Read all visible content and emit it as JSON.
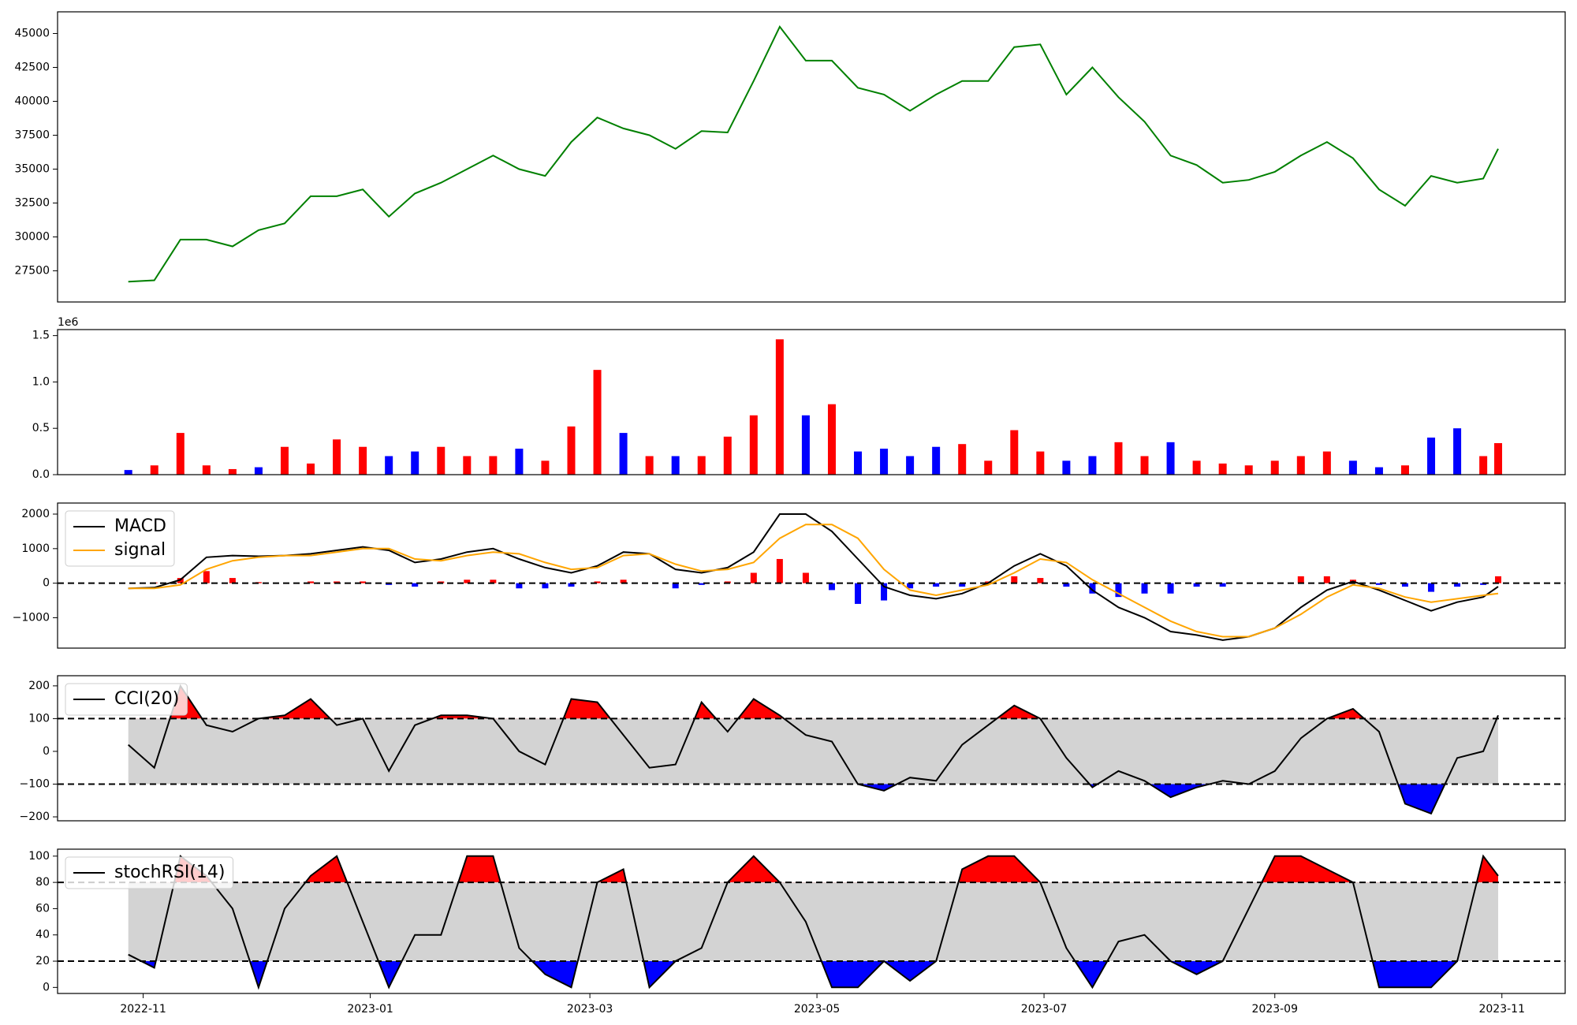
{
  "chart_data": [
    {
      "type": "line",
      "x": [
        "2022-10-28",
        "2022-11-04",
        "2022-11-11",
        "2022-11-18",
        "2022-11-25",
        "2022-12-02",
        "2022-12-09",
        "2022-12-16",
        "2022-12-23",
        "2022-12-30",
        "2023-01-06",
        "2023-01-13",
        "2023-01-20",
        "2023-01-27",
        "2023-02-03",
        "2023-02-10",
        "2023-02-17",
        "2023-02-24",
        "2023-03-03",
        "2023-03-10",
        "2023-03-17",
        "2023-03-24",
        "2023-03-31",
        "2023-04-07",
        "2023-04-14",
        "2023-04-21",
        "2023-04-28",
        "2023-05-05",
        "2023-05-12",
        "2023-05-19",
        "2023-05-26",
        "2023-06-02",
        "2023-06-09",
        "2023-06-16",
        "2023-06-23",
        "2023-06-30",
        "2023-07-07",
        "2023-07-14",
        "2023-07-21",
        "2023-07-28",
        "2023-08-04",
        "2023-08-11",
        "2023-08-18",
        "2023-08-25",
        "2023-09-01",
        "2023-09-08",
        "2023-09-15",
        "2023-09-22",
        "2023-09-29",
        "2023-10-06",
        "2023-10-13",
        "2023-10-20",
        "2023-10-27",
        "2023-10-31"
      ],
      "xlim": [
        "2022-10-09",
        "2023-11-18"
      ],
      "xticks": [
        "2022-11",
        "2023-01",
        "2023-03",
        "2023-05",
        "2023-07",
        "2023-09",
        "2023-11"
      ],
      "series": [
        {
          "color": "green",
          "values": [
            26700,
            26800,
            29800,
            29800,
            29300,
            30500,
            31000,
            33000,
            33000,
            33500,
            31500,
            33200,
            34000,
            35000,
            36000,
            35000,
            34500,
            37000,
            38800,
            38000,
            37500,
            36500,
            37800,
            37700,
            41500,
            45500,
            43000,
            43000,
            41000,
            40500,
            39300,
            40500,
            41500,
            41500,
            44000,
            44200,
            40500,
            42500,
            40300,
            38500,
            36000,
            35300,
            34000,
            34200,
            34800,
            36000,
            37000,
            35800,
            33500,
            32300,
            34500,
            34000,
            34300,
            36500
          ]
        }
      ],
      "ylim": [
        25200,
        46600
      ],
      "yticks": [
        27500,
        30000,
        32500,
        35000,
        37500,
        40000,
        42500,
        45000
      ]
    },
    {
      "type": "bar",
      "values": [
        50000,
        100000,
        450000,
        100000,
        60000,
        80000,
        300000,
        120000,
        380000,
        300000,
        200000,
        250000,
        300000,
        200000,
        200000,
        280000,
        150000,
        520000,
        1130000,
        450000,
        200000,
        200000,
        200000,
        410000,
        640000,
        1460000,
        640000,
        760000,
        250000,
        280000,
        200000,
        300000,
        330000,
        150000,
        480000,
        250000,
        150000,
        200000,
        350000,
        200000,
        350000,
        150000,
        120000,
        100000,
        150000,
        200000,
        250000,
        150000,
        80000,
        100000,
        400000,
        500000,
        200000,
        340000
      ],
      "colors": [
        "blue",
        "red",
        "red",
        "red",
        "red",
        "blue",
        "red",
        "red",
        "red",
        "red",
        "blue",
        "blue",
        "red",
        "red",
        "red",
        "blue",
        "red",
        "red",
        "red",
        "blue",
        "red",
        "blue",
        "red",
        "red",
        "red",
        "red",
        "blue",
        "red",
        "blue",
        "blue",
        "blue",
        "blue",
        "red",
        "red",
        "red",
        "red",
        "blue",
        "blue",
        "red",
        "red",
        "blue",
        "red",
        "red",
        "red",
        "red",
        "red",
        "red",
        "blue",
        "blue",
        "red",
        "blue",
        "blue",
        "red",
        "red"
      ],
      "ylim": [
        0,
        1565000
      ],
      "yticks": [
        {
          "value": 0,
          "label": "0.0"
        },
        {
          "value": 500000,
          "label": "0.5"
        },
        {
          "value": 1000000,
          "label": "1.0"
        },
        {
          "value": 1500000,
          "label": "1.5"
        }
      ],
      "y_offset_label": "1e6"
    },
    {
      "type": "line",
      "legend": "upper left",
      "series": [
        {
          "name": "MACD",
          "color": "black",
          "values": [
            -150,
            -130,
            100,
            750,
            800,
            780,
            800,
            850,
            950,
            1050,
            950,
            600,
            700,
            900,
            1000,
            700,
            450,
            300,
            500,
            900,
            850,
            400,
            300,
            450,
            900,
            2000,
            2000,
            1500,
            700,
            -100,
            -350,
            -450,
            -300,
            0,
            500,
            850,
            500,
            -200,
            -700,
            -1000,
            -1400,
            -1500,
            -1650,
            -1550,
            -1300,
            -700,
            -200,
            50,
            -200,
            -500,
            -800,
            -550,
            -400,
            -100
          ]
        },
        {
          "name": "signal",
          "color": "orange",
          "values": [
            -150,
            -150,
            -50,
            400,
            650,
            750,
            800,
            800,
            900,
            1000,
            1000,
            700,
            650,
            800,
            900,
            850,
            600,
            400,
            450,
            800,
            850,
            550,
            350,
            400,
            600,
            1300,
            1700,
            1700,
            1300,
            400,
            -200,
            -350,
            -200,
            -50,
            300,
            700,
            600,
            100,
            -300,
            -700,
            -1100,
            -1400,
            -1550,
            -1550,
            -1300,
            -900,
            -400,
            -50,
            -150,
            -400,
            -550,
            -450,
            -350,
            -300
          ]
        }
      ],
      "histogram": {
        "up_color": "red",
        "down_color": "blue",
        "values": [
          0,
          20,
          150,
          350,
          150,
          30,
          0,
          50,
          50,
          50,
          -50,
          -100,
          50,
          100,
          100,
          -150,
          -150,
          -100,
          50,
          100,
          0,
          -150,
          -50,
          50,
          300,
          700,
          300,
          -200,
          -600,
          -500,
          -150,
          -100,
          -100,
          50,
          200,
          150,
          -100,
          -300,
          -400,
          -300,
          -300,
          -100,
          -100,
          0,
          0,
          200,
          200,
          100,
          -50,
          -100,
          -250,
          -100,
          -50,
          200
        ]
      },
      "levels": [
        0
      ],
      "ylim": [
        -1880,
        2320
      ],
      "yticks": [
        {
          "value": -1000,
          "label": "−1000"
        },
        0,
        1000,
        2000
      ]
    },
    {
      "type": "line",
      "legend": "upper left",
      "series": [
        {
          "name": "CCI(20)",
          "color": "black",
          "values": [
            20,
            -50,
            200,
            80,
            60,
            100,
            110,
            160,
            80,
            100,
            -60,
            80,
            110,
            110,
            100,
            0,
            -40,
            160,
            150,
            50,
            -50,
            -40,
            150,
            60,
            160,
            110,
            50,
            30,
            -100,
            -120,
            -80,
            -90,
            20,
            80,
            140,
            100,
            -20,
            -110,
            -60,
            -90,
            -140,
            -110,
            -90,
            -100,
            -60,
            40,
            100,
            130,
            60,
            -160,
            -190,
            -20,
            0,
            110
          ]
        }
      ],
      "levels": [
        -100,
        100
      ],
      "band_color": "lightgray",
      "upper_color": "red",
      "lower_color": "blue",
      "ylim": [
        -212,
        231
      ],
      "yticks": [
        {
          "value": -200,
          "label": "−200"
        },
        {
          "value": -100,
          "label": "−100"
        },
        0,
        100,
        200
      ]
    },
    {
      "type": "line",
      "legend": "upper left",
      "series": [
        {
          "name": "stochRSI(14)",
          "color": "black",
          "values": [
            25,
            15,
            100,
            85,
            60,
            0,
            60,
            85,
            100,
            50,
            0,
            40,
            40,
            100,
            100,
            30,
            10,
            0,
            80,
            90,
            0,
            20,
            30,
            80,
            100,
            80,
            50,
            0,
            0,
            20,
            5,
            20,
            90,
            100,
            100,
            80,
            30,
            0,
            35,
            40,
            20,
            10,
            20,
            60,
            100,
            100,
            90,
            80,
            0,
            0,
            0,
            20,
            100,
            85
          ]
        }
      ],
      "levels": [
        20,
        80
      ],
      "band_color": "lightgray",
      "upper_color": "red",
      "lower_color": "blue",
      "ylim": [
        -4.6,
        105.3
      ],
      "yticks": [
        0,
        20,
        40,
        60,
        80,
        100
      ]
    }
  ]
}
